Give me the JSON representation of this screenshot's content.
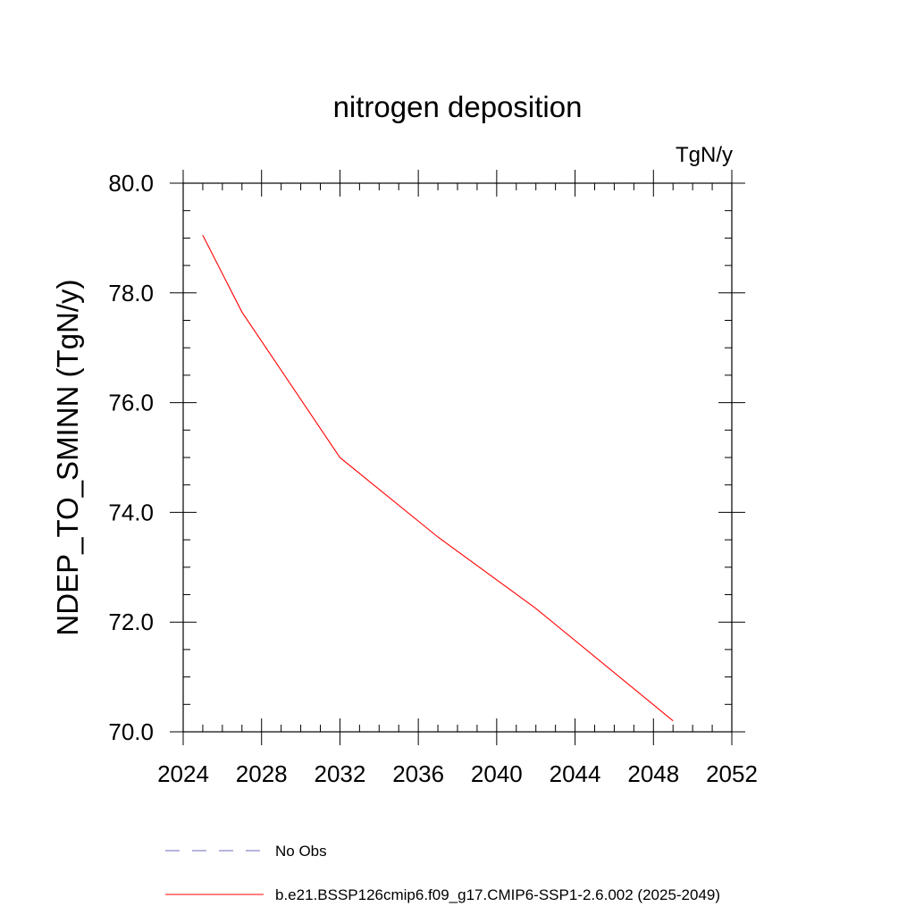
{
  "chart_data": {
    "type": "line",
    "title": "nitrogen deposition",
    "units": "TgN/y",
    "xlabel": "",
    "ylabel": "NDEP_TO_SMINN  (TgN/y)",
    "xlim": [
      2024,
      2052
    ],
    "ylim": [
      70,
      80
    ],
    "x_ticks": [
      2024,
      2028,
      2032,
      2036,
      2040,
      2044,
      2048,
      2052
    ],
    "x_tick_labels": [
      "2024",
      "2028",
      "2032",
      "2036",
      "2040",
      "2044",
      "2048",
      "2052"
    ],
    "x_minor_step": 1,
    "y_ticks": [
      70,
      72,
      74,
      76,
      78,
      80
    ],
    "y_tick_labels": [
      "70.0",
      "72.0",
      "74.0",
      "76.0",
      "78.0",
      "80.0"
    ],
    "y_minor_step": 0.5,
    "grid": false,
    "series": [
      {
        "name": "b.e21.BSSP126cmip6.f09_g17.CMIP6-SSP1-2.6.002 (2025-2049)",
        "color": "#ff0000",
        "dash": "solid",
        "x": [
          2025,
          2027,
          2032,
          2037,
          2042,
          2049
        ],
        "y": [
          79.05,
          77.65,
          75.0,
          73.55,
          72.25,
          70.2
        ]
      }
    ],
    "legend": {
      "position": "bottom-left",
      "entries": [
        {
          "label": "No Obs",
          "color": "#6b6bb8",
          "dash": "dashed"
        },
        {
          "label": "b.e21.BSSP126cmip6.f09_g17.CMIP6-SSP1-2.6.002 (2025-2049)",
          "color": "#ff0000",
          "dash": "solid"
        }
      ]
    }
  }
}
